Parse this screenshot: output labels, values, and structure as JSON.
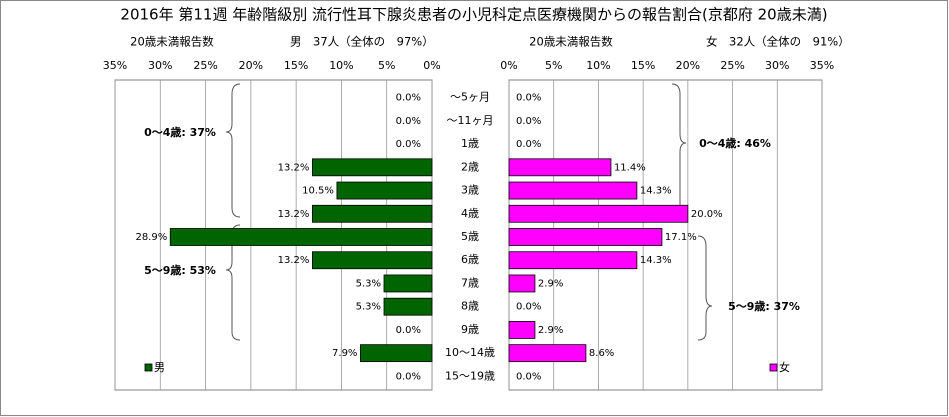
{
  "chart_data": [
    {
      "type": "bar",
      "orientation": "horizontal",
      "title": "2016年 第11週 年齢階級別 流行性耳下腺炎患者の小児科定点医療機関からの報告割合(京都府 20歳未満)",
      "axis_label": "20歳未満報告数",
      "subtitle": "男　37人（全体の　97%）",
      "categories": [
        "～5ヶ月",
        "～11ヶ月",
        "1歳",
        "2歳",
        "3歳",
        "4歳",
        "5歳",
        "6歳",
        "7歳",
        "8歳",
        "9歳",
        "10～14歳",
        "15～19歳"
      ],
      "series": [
        {
          "name": "男",
          "color": "#006400",
          "values": [
            0,
            0,
            0,
            13.2,
            10.5,
            13.2,
            28.9,
            13.2,
            5.3,
            5.3,
            0,
            7.9,
            0
          ],
          "value_labels": [
            "0.0%",
            "0.0%",
            "0.0%",
            "13.2%",
            "10.5%",
            "13.2%",
            "28.9%",
            "13.2%",
            "5.3%",
            "5.3%",
            "0.0%",
            "7.9%",
            "0.0%"
          ]
        }
      ],
      "xlim": [
        35,
        0
      ],
      "xticks": [
        {
          "value": 35,
          "label": "35%"
        },
        {
          "value": 30,
          "label": "30%"
        },
        {
          "value": 25,
          "label": "25%"
        },
        {
          "value": 20,
          "label": "20%"
        },
        {
          "value": 15,
          "label": "15%"
        },
        {
          "value": 10,
          "label": "10%"
        },
        {
          "value": 5,
          "label": "5%"
        },
        {
          "value": 0,
          "label": "0%"
        }
      ],
      "grid": true,
      "legend": "lower left",
      "annotations": [
        "0～4歳: 37%",
        "5～9歳: 53%"
      ]
    },
    {
      "type": "bar",
      "orientation": "horizontal",
      "axis_label": "20歳未満報告数",
      "subtitle": "女　32人（全体の　91%）",
      "series": [
        {
          "name": "女",
          "color": "#ff00ff",
          "values": [
            0,
            0,
            0,
            11.4,
            14.3,
            20.0,
            17.1,
            14.3,
            2.9,
            0,
            2.9,
            8.6,
            0
          ],
          "value_labels": [
            "0.0%",
            "0.0%",
            "0.0%",
            "11.4%",
            "14.3%",
            "20.0%",
            "17.1%",
            "14.3%",
            "2.9%",
            "0.0%",
            "2.9%",
            "8.6%",
            "0.0%"
          ]
        }
      ],
      "xlim": [
        0,
        35
      ],
      "xticks": [
        {
          "value": 0,
          "label": "0%"
        },
        {
          "value": 5,
          "label": "5%"
        },
        {
          "value": 10,
          "label": "10%"
        },
        {
          "value": 15,
          "label": "15%"
        },
        {
          "value": 20,
          "label": "20%"
        },
        {
          "value": 25,
          "label": "25%"
        },
        {
          "value": 30,
          "label": "30%"
        },
        {
          "value": 35,
          "label": "35%"
        }
      ],
      "grid": true,
      "legend": "lower right",
      "annotations": [
        "0～4歳: 46%",
        "5～9歳: 37%"
      ]
    }
  ]
}
